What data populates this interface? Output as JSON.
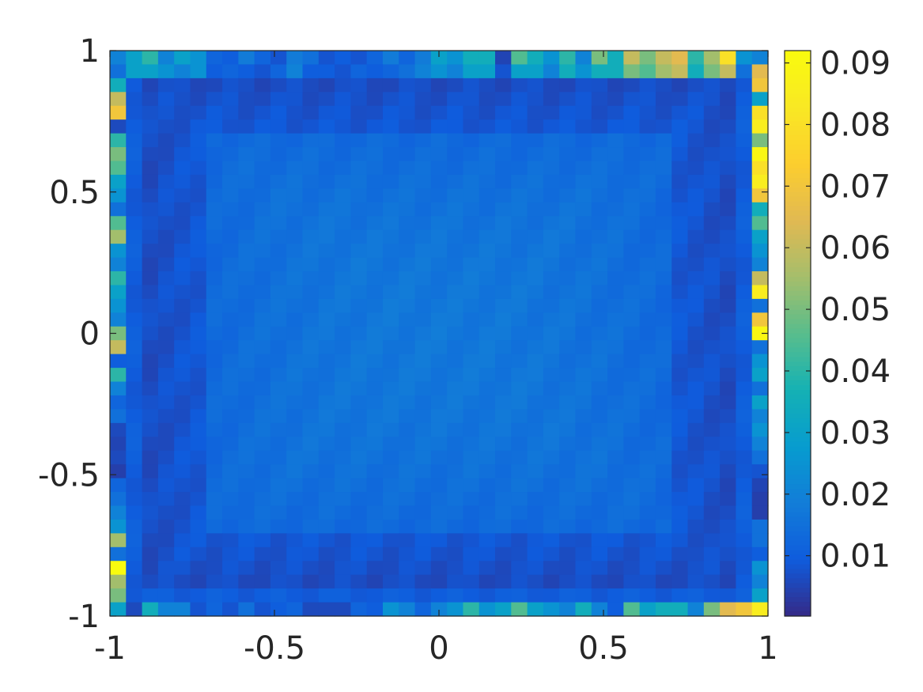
{
  "chart_data": {
    "type": "heatmap",
    "title": "",
    "xlabel": "",
    "ylabel": "",
    "xlim": [
      -1,
      1
    ],
    "ylim": [
      -1,
      1
    ],
    "grid": false,
    "colormap": "parula",
    "colorbar": {
      "location": "right",
      "clim": [
        0.0002,
        0.092
      ],
      "ticks": [
        0.01,
        0.02,
        0.03,
        0.04,
        0.05,
        0.06,
        0.07,
        0.08,
        0.09
      ],
      "tick_labels": [
        "0.01",
        "0.02",
        "0.03",
        "0.04",
        "0.05",
        "0.06",
        "0.07",
        "0.08",
        "0.09"
      ]
    },
    "xticks": [
      -1,
      -0.5,
      0,
      0.5,
      1
    ],
    "xtick_labels": [
      "-1",
      "-0.5",
      "0",
      "0.5",
      "1"
    ],
    "yticks": [
      -1,
      -0.5,
      0,
      0.5,
      1
    ],
    "ytick_labels": [
      "-1",
      "-0.5",
      "0",
      "0.5",
      "1"
    ],
    "grid_size": [
      41,
      41
    ],
    "x": [
      -1,
      -0.95,
      -0.9,
      -0.85,
      -0.8,
      -0.75,
      -0.7,
      -0.65,
      -0.6,
      -0.55,
      -0.5,
      -0.45,
      -0.4,
      -0.35,
      -0.3,
      -0.25,
      -0.2,
      -0.15,
      -0.1,
      -0.05,
      0,
      0.05,
      0.1,
      0.15,
      0.2,
      0.25,
      0.3,
      0.35,
      0.4,
      0.45,
      0.5,
      0.55,
      0.6,
      0.65,
      0.7,
      0.75,
      0.8,
      0.85,
      0.9,
      0.95,
      1
    ],
    "y": [
      1,
      0.95,
      0.9,
      0.85,
      0.8,
      0.75,
      0.7,
      0.65,
      0.6,
      0.55,
      0.5,
      0.45,
      0.4,
      0.35,
      0.3,
      0.25,
      0.2,
      0.15,
      0.1,
      0.05,
      0,
      -0.05,
      -0.1,
      -0.15,
      -0.2,
      -0.25,
      -0.3,
      -0.35,
      -0.4,
      -0.45,
      -0.5,
      -0.55,
      -0.6,
      -0.65,
      -0.7,
      -0.75,
      -0.8,
      -0.85,
      -0.9,
      -0.95,
      -1
    ],
    "z_interior": {
      "center": 0.017,
      "edge": 0.009,
      "dark_band": 0.005
    },
    "edge_values": {
      "top": [
        0.02,
        0.03,
        0.04,
        0.02,
        0.03,
        0.025,
        0.012,
        0.01,
        0.018,
        0.012,
        0.008,
        0.018,
        0.015,
        0.008,
        0.01,
        0.008,
        0.012,
        0.018,
        0.012,
        0.018,
        0.03,
        0.025,
        0.035,
        0.035,
        0.005,
        0.045,
        0.035,
        0.025,
        0.04,
        0.02,
        0.05,
        0.035,
        0.06,
        0.05,
        0.06,
        0.065,
        0.04,
        0.055,
        0.08,
        0.025,
        0.02
      ],
      "top2": [
        0.015,
        0.03,
        0.03,
        0.025,
        0.02,
        0.025,
        0.01,
        0.012,
        0.01,
        0.008,
        0.012,
        0.02,
        0.01,
        0.01,
        0.008,
        0.012,
        0.01,
        0.012,
        0.015,
        0.02,
        0.025,
        0.02,
        0.03,
        0.03,
        0.008,
        0.03,
        0.03,
        0.02,
        0.035,
        0.025,
        0.035,
        0.035,
        0.05,
        0.045,
        0.055,
        0.06,
        0.035,
        0.05,
        0.06,
        0.015,
        0.065
      ],
      "bottom": [
        0.03,
        0.006,
        0.035,
        0.02,
        0.02,
        0.008,
        0.012,
        0.008,
        0.015,
        0.008,
        0.01,
        0.012,
        0.006,
        0.006,
        0.006,
        0.012,
        0.01,
        0.025,
        0.02,
        0.012,
        0.02,
        0.025,
        0.04,
        0.025,
        0.03,
        0.045,
        0.03,
        0.025,
        0.02,
        0.035,
        0.02,
        0.01,
        0.045,
        0.03,
        0.035,
        0.035,
        0.02,
        0.05,
        0.065,
        0.07,
        0.085
      ],
      "left": [
        0.02,
        0.06,
        0.035,
        0.06,
        0.07,
        0.006,
        0.04,
        0.05,
        0.045,
        0.03,
        0.025,
        0.015,
        0.045,
        0.055,
        0.025,
        0.02,
        0.04,
        0.03,
        0.025,
        0.02,
        0.05,
        0.06,
        0.01,
        0.04,
        0.02,
        0.012,
        0.015,
        0.006,
        0.005,
        0.006,
        0.004,
        0.012,
        0.015,
        0.02,
        0.025,
        0.055,
        0.015,
        0.092,
        0.055,
        0.05,
        0.03
      ],
      "right": [
        0.02,
        0.065,
        0.07,
        0.03,
        0.08,
        0.085,
        0.05,
        0.09,
        0.08,
        0.085,
        0.07,
        0.035,
        0.045,
        0.03,
        0.025,
        0.02,
        0.06,
        0.085,
        0.015,
        0.07,
        0.09,
        0.015,
        0.025,
        0.03,
        0.015,
        0.03,
        0.02,
        0.025,
        0.02,
        0.015,
        0.008,
        0.005,
        0.004,
        0.004,
        0.015,
        0.015,
        0.01,
        0.025,
        0.02,
        0.03,
        0.09
      ]
    }
  }
}
